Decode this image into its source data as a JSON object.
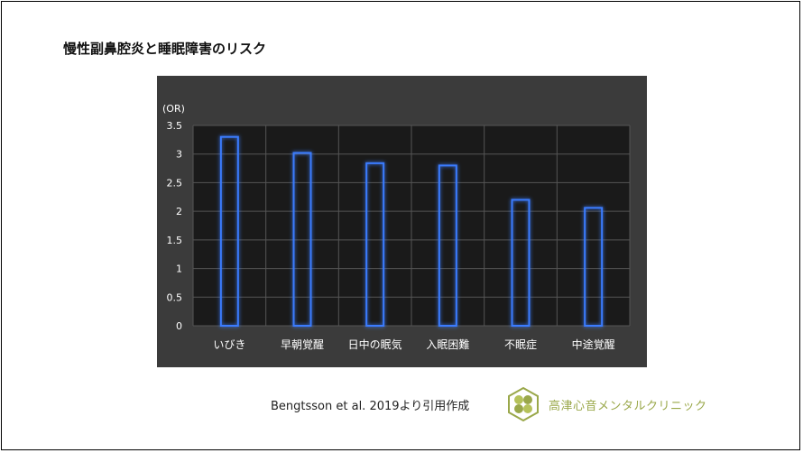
{
  "slide": {
    "title": "慢性副鼻腔炎と睡眠障害のリスク",
    "source": "Bengtsson et al. 2019より引用作成",
    "clinic_name": "高津心音メンタルクリニック",
    "logo_icon": "clover-logo-icon"
  },
  "colors": {
    "chart_bg": "#3b3b3b",
    "plot_bg": "#1a1a1a",
    "bar_stroke": "#2f5fd0",
    "bar_glow": "#3a7bff",
    "text": "#ffffff",
    "logo": "#9aa84a"
  },
  "chart_data": {
    "type": "bar",
    "ylabel": "(OR)",
    "categories": [
      "いびき",
      "早朝覚醒",
      "日中の眠気",
      "入眠困難",
      "不眠症",
      "中途覚醒"
    ],
    "values": [
      3.3,
      3.02,
      2.84,
      2.8,
      2.2,
      2.06
    ],
    "ylim": [
      0,
      3.5
    ],
    "yticks": [
      "0",
      "0.5",
      "1",
      "1.5",
      "2",
      "2.5",
      "3",
      "3.5"
    ],
    "grid": true,
    "legend": "none"
  }
}
